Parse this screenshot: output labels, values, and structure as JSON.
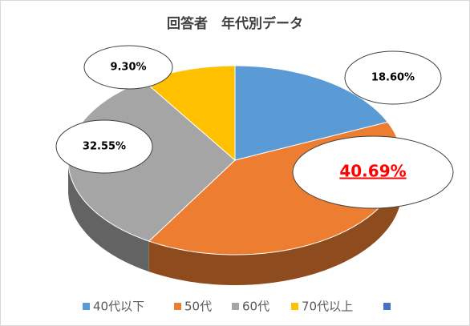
{
  "chart_data": {
    "type": "pie3d",
    "title": "回答者　年代別データ",
    "categories": [
      "40代以下",
      "50代",
      "60代",
      "70代以上",
      null
    ],
    "values": [
      18.6,
      40.69,
      32.55,
      9.3,
      null
    ],
    "value_labels": [
      "18.60%",
      "40.69%",
      "32.55%",
      "9.30%",
      null
    ],
    "colors": [
      "#5b9bd5",
      "#ed7d31",
      "#a5a5a5",
      "#ffc000",
      "#4472c4"
    ],
    "legend": "bottom"
  }
}
